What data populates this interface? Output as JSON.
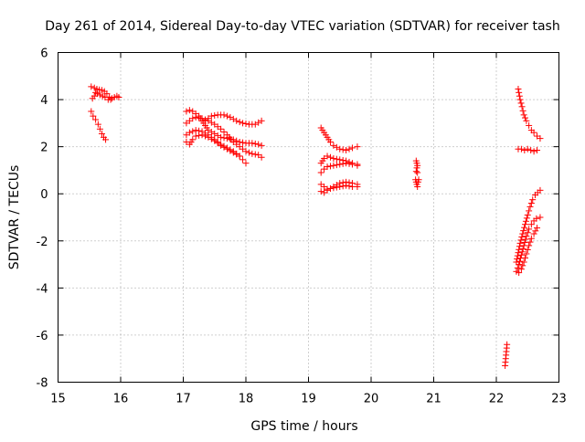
{
  "chart_data": {
    "type": "scatter",
    "title": "Day 261 of 2014, Sidereal Day-to-day VTEC variation (SDTVAR) for receiver tash",
    "xlabel": "GPS time / hours",
    "ylabel": "SDTVAR / TECUs",
    "xlim": [
      15,
      23
    ],
    "ylim": [
      -8,
      6
    ],
    "xticks": [
      "15",
      "16",
      "17",
      "18",
      "19",
      "20",
      "21",
      "22",
      "23"
    ],
    "yticks": [
      "6",
      "4",
      "2",
      "0",
      "-2",
      "-4",
      "-6",
      "-8"
    ],
    "grid": true,
    "marker": "+",
    "color": "#ff0000",
    "segments": [
      {
        "name": "arc-15.5-top",
        "points": [
          [
            15.53,
            4.55
          ],
          [
            15.58,
            4.5
          ],
          [
            15.62,
            4.45
          ],
          [
            15.66,
            4.42
          ],
          [
            15.7,
            4.4
          ],
          [
            15.74,
            4.35
          ],
          [
            15.78,
            4.25
          ],
          [
            15.82,
            4.1
          ],
          [
            15.86,
            4.05
          ],
          [
            15.9,
            4.1
          ],
          [
            15.94,
            4.15
          ],
          [
            15.97,
            4.1
          ]
        ]
      },
      {
        "name": "arc-15.5-top-b",
        "points": [
          [
            15.55,
            4.05
          ],
          [
            15.58,
            4.15
          ],
          [
            15.6,
            4.3
          ],
          [
            15.63,
            4.25
          ],
          [
            15.67,
            4.2
          ],
          [
            15.71,
            4.15
          ],
          [
            15.75,
            4.1
          ],
          [
            15.8,
            4.0
          ],
          [
            15.84,
            4.0
          ]
        ]
      },
      {
        "name": "arc-15.5-low",
        "points": [
          [
            15.53,
            3.5
          ],
          [
            15.56,
            3.3
          ],
          [
            15.6,
            3.15
          ],
          [
            15.64,
            2.95
          ],
          [
            15.67,
            2.75
          ],
          [
            15.7,
            2.55
          ],
          [
            15.73,
            2.4
          ],
          [
            15.76,
            2.3
          ]
        ]
      },
      {
        "name": "arc-17-a",
        "points": [
          [
            17.05,
            3.5
          ],
          [
            17.1,
            3.55
          ],
          [
            17.15,
            3.5
          ],
          [
            17.2,
            3.4
          ],
          [
            17.25,
            3.3
          ],
          [
            17.3,
            3.1
          ],
          [
            17.35,
            2.9
          ],
          [
            17.4,
            2.7
          ],
          [
            17.5,
            2.55
          ],
          [
            17.6,
            2.4
          ],
          [
            17.7,
            2.35
          ],
          [
            17.8,
            2.3
          ],
          [
            17.9,
            2.2
          ],
          [
            18.0,
            2.15
          ],
          [
            18.1,
            2.15
          ],
          [
            18.2,
            2.1
          ],
          [
            18.25,
            2.05
          ]
        ]
      },
      {
        "name": "arc-17-b",
        "points": [
          [
            17.05,
            3.0
          ],
          [
            17.1,
            3.1
          ],
          [
            17.15,
            3.2
          ],
          [
            17.2,
            3.25
          ],
          [
            17.3,
            3.2
          ],
          [
            17.4,
            3.1
          ],
          [
            17.5,
            2.95
          ],
          [
            17.6,
            2.75
          ],
          [
            17.7,
            2.5
          ],
          [
            17.8,
            2.2
          ],
          [
            17.9,
            2.0
          ],
          [
            18.0,
            1.8
          ],
          [
            18.1,
            1.7
          ],
          [
            18.2,
            1.65
          ],
          [
            18.25,
            1.55
          ]
        ]
      },
      {
        "name": "arc-17-c",
        "points": [
          [
            17.05,
            2.5
          ],
          [
            17.1,
            2.6
          ],
          [
            17.2,
            2.7
          ],
          [
            17.3,
            2.65
          ],
          [
            17.4,
            2.5
          ],
          [
            17.5,
            2.3
          ],
          [
            17.6,
            2.1
          ],
          [
            17.7,
            1.95
          ],
          [
            17.8,
            1.8
          ],
          [
            17.9,
            1.6
          ],
          [
            17.95,
            1.45
          ],
          [
            18.0,
            1.3
          ]
        ]
      },
      {
        "name": "arc-17-d",
        "points": [
          [
            17.05,
            2.2
          ],
          [
            17.1,
            2.1
          ],
          [
            17.15,
            2.3
          ],
          [
            17.2,
            2.45
          ],
          [
            17.3,
            2.5
          ],
          [
            17.4,
            2.4
          ],
          [
            17.5,
            2.25
          ],
          [
            17.6,
            2.05
          ],
          [
            17.7,
            1.9
          ],
          [
            17.8,
            1.75
          ],
          [
            17.9,
            1.6
          ]
        ]
      },
      {
        "name": "arc-17-e",
        "points": [
          [
            17.35,
            3.1
          ],
          [
            17.45,
            3.3
          ],
          [
            17.55,
            3.35
          ],
          [
            17.65,
            3.35
          ],
          [
            17.75,
            3.25
          ],
          [
            17.85,
            3.1
          ],
          [
            17.95,
            3.0
          ],
          [
            18.05,
            2.95
          ],
          [
            18.15,
            2.95
          ],
          [
            18.25,
            3.1
          ]
        ]
      },
      {
        "name": "arc-19-a",
        "points": [
          [
            19.2,
            2.8
          ],
          [
            19.25,
            2.6
          ],
          [
            19.3,
            2.4
          ],
          [
            19.35,
            2.2
          ],
          [
            19.4,
            2.05
          ],
          [
            19.5,
            1.9
          ],
          [
            19.6,
            1.85
          ],
          [
            19.7,
            1.95
          ],
          [
            19.78,
            2.0
          ]
        ]
      },
      {
        "name": "arc-19-b",
        "points": [
          [
            19.2,
            1.3
          ],
          [
            19.25,
            1.5
          ],
          [
            19.3,
            1.6
          ],
          [
            19.35,
            1.55
          ],
          [
            19.4,
            1.5
          ],
          [
            19.5,
            1.45
          ],
          [
            19.6,
            1.4
          ],
          [
            19.7,
            1.3
          ],
          [
            19.78,
            1.25
          ]
        ]
      },
      {
        "name": "arc-19-c",
        "points": [
          [
            19.2,
            0.9
          ],
          [
            19.25,
            1.05
          ],
          [
            19.3,
            1.15
          ],
          [
            19.4,
            1.2
          ],
          [
            19.5,
            1.25
          ],
          [
            19.6,
            1.3
          ],
          [
            19.7,
            1.25
          ],
          [
            19.78,
            1.2
          ]
        ]
      },
      {
        "name": "arc-19-d",
        "points": [
          [
            19.2,
            0.1
          ],
          [
            19.25,
            0.05
          ],
          [
            19.3,
            0.15
          ],
          [
            19.4,
            0.3
          ],
          [
            19.5,
            0.45
          ],
          [
            19.6,
            0.5
          ],
          [
            19.7,
            0.45
          ],
          [
            19.78,
            0.4
          ]
        ]
      },
      {
        "name": "arc-19-e",
        "points": [
          [
            19.2,
            0.4
          ],
          [
            19.25,
            0.3
          ],
          [
            19.3,
            0.2
          ],
          [
            19.4,
            0.25
          ],
          [
            19.5,
            0.3
          ],
          [
            19.6,
            0.35
          ],
          [
            19.7,
            0.3
          ],
          [
            19.78,
            0.3
          ]
        ]
      },
      {
        "name": "arc-20.7-a",
        "points": [
          [
            20.72,
            1.4
          ],
          [
            20.73,
            1.3
          ],
          [
            20.74,
            1.2
          ],
          [
            20.73,
            1.1
          ],
          [
            20.72,
            0.95
          ],
          [
            20.74,
            0.9
          ]
        ]
      },
      {
        "name": "arc-20.7-b",
        "points": [
          [
            20.71,
            0.6
          ],
          [
            20.72,
            0.5
          ],
          [
            20.73,
            0.4
          ],
          [
            20.74,
            0.3
          ],
          [
            20.75,
            0.5
          ],
          [
            20.76,
            0.6
          ]
        ]
      },
      {
        "name": "arc-22.4-top",
        "points": [
          [
            22.35,
            4.45
          ],
          [
            22.38,
            4.0
          ],
          [
            22.41,
            3.7
          ],
          [
            22.44,
            3.35
          ],
          [
            22.48,
            3.1
          ],
          [
            22.52,
            2.9
          ],
          [
            22.56,
            2.7
          ],
          [
            22.6,
            2.6
          ],
          [
            22.65,
            2.45
          ],
          [
            22.7,
            2.35
          ]
        ]
      },
      {
        "name": "arc-22.4-mid",
        "points": [
          [
            22.35,
            1.9
          ],
          [
            22.4,
            1.9
          ],
          [
            22.45,
            1.85
          ],
          [
            22.5,
            1.9
          ],
          [
            22.55,
            1.85
          ],
          [
            22.6,
            1.8
          ],
          [
            22.65,
            1.85
          ]
        ]
      },
      {
        "name": "arc-22.4-low-a",
        "points": [
          [
            22.32,
            -2.9
          ],
          [
            22.35,
            -2.5
          ],
          [
            22.38,
            -2.1
          ],
          [
            22.42,
            -1.7
          ],
          [
            22.46,
            -1.3
          ],
          [
            22.5,
            -0.9
          ],
          [
            22.54,
            -0.55
          ],
          [
            22.58,
            -0.25
          ],
          [
            22.62,
            -0.05
          ],
          [
            22.66,
            0.05
          ],
          [
            22.7,
            0.15
          ]
        ]
      },
      {
        "name": "arc-22.4-low-b",
        "points": [
          [
            22.32,
            -3.3
          ],
          [
            22.36,
            -3.0
          ],
          [
            22.4,
            -2.6
          ],
          [
            22.44,
            -2.2
          ],
          [
            22.48,
            -1.8
          ],
          [
            22.52,
            -1.5
          ],
          [
            22.56,
            -1.3
          ],
          [
            22.6,
            -1.15
          ],
          [
            22.64,
            -1.05
          ],
          [
            22.7,
            -1.0
          ]
        ]
      },
      {
        "name": "arc-22.4-low-c",
        "points": [
          [
            22.36,
            -3.35
          ],
          [
            22.4,
            -3.2
          ],
          [
            22.44,
            -2.9
          ],
          [
            22.48,
            -2.55
          ],
          [
            22.52,
            -2.2
          ],
          [
            22.56,
            -1.9
          ],
          [
            22.6,
            -1.7
          ],
          [
            22.65,
            -1.45
          ]
        ]
      },
      {
        "name": "arc-22.2",
        "points": [
          [
            22.17,
            -6.4
          ],
          [
            22.16,
            -6.7
          ],
          [
            22.15,
            -7.0
          ],
          [
            22.14,
            -7.3
          ]
        ]
      }
    ]
  }
}
